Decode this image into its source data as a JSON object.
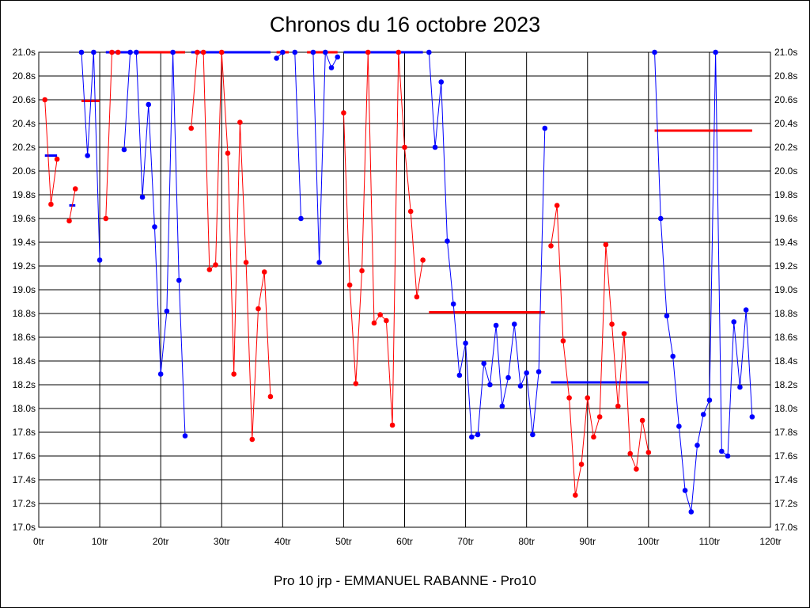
{
  "chart_data": {
    "type": "line",
    "title": "Chronos du 16 octobre 2023",
    "subtitle": "Pro 10 jrp - EMMANUEL RABANNE - Pro10",
    "xlim": [
      0,
      120
    ],
    "ylim": [
      17.0,
      21.0
    ],
    "x_ticks": [
      "0tr",
      "10tr",
      "20tr",
      "30tr",
      "40tr",
      "50tr",
      "60tr",
      "70tr",
      "80tr",
      "90tr",
      "100tr",
      "110tr",
      "120tr"
    ],
    "y_ticks": [
      "17.0s",
      "17.2s",
      "17.4s",
      "17.6s",
      "17.8s",
      "18.0s",
      "18.2s",
      "18.4s",
      "18.6s",
      "18.8s",
      "19.0s",
      "19.2s",
      "19.4s",
      "19.6s",
      "19.8s",
      "20.0s",
      "20.2s",
      "20.4s",
      "20.6s",
      "20.8s",
      "21.0s"
    ],
    "grid": true,
    "colors": {
      "red": "#ff0000",
      "blue": "#0000ff",
      "grid": "#000000"
    },
    "segments": [
      {
        "color": "red",
        "points": [
          [
            1,
            20.6
          ],
          [
            2,
            19.72
          ],
          [
            3,
            20.1
          ]
        ]
      },
      {
        "color": "red",
        "points": [
          [
            5,
            19.58
          ],
          [
            6,
            19.85
          ]
        ]
      },
      {
        "color": "blue",
        "points": [
          [
            7,
            21.0
          ],
          [
            8,
            20.13
          ],
          [
            9,
            21.0
          ],
          [
            10,
            19.25
          ]
        ]
      },
      {
        "color": "red",
        "points": [
          [
            11,
            19.6
          ],
          [
            12,
            21.0
          ],
          [
            13,
            21.0
          ]
        ]
      },
      {
        "color": "blue",
        "points": [
          [
            14,
            20.18
          ],
          [
            15,
            21.0
          ],
          [
            16,
            21.0
          ],
          [
            17,
            19.78
          ],
          [
            18,
            20.56
          ],
          [
            19,
            19.53
          ],
          [
            20,
            18.29
          ],
          [
            21,
            18.82
          ],
          [
            22,
            21.0
          ],
          [
            23,
            19.08
          ],
          [
            24,
            17.77
          ]
        ]
      },
      {
        "color": "red",
        "points": [
          [
            25,
            20.36
          ],
          [
            26,
            21.0
          ],
          [
            27,
            21.0
          ],
          [
            28,
            19.17
          ],
          [
            29,
            19.21
          ],
          [
            30,
            21.0
          ],
          [
            31,
            20.15
          ],
          [
            32,
            18.29
          ],
          [
            33,
            20.41
          ],
          [
            34,
            19.23
          ],
          [
            35,
            17.74
          ],
          [
            36,
            18.84
          ],
          [
            37,
            19.15
          ],
          [
            38,
            18.1
          ]
        ]
      },
      {
        "color": "blue",
        "points": [
          [
            39,
            20.95
          ],
          [
            40,
            21.0
          ]
        ]
      },
      {
        "color": "blue",
        "points": [
          [
            42,
            21.0
          ],
          [
            43,
            19.6
          ]
        ]
      },
      {
        "color": "blue",
        "points": [
          [
            45,
            21.0
          ],
          [
            46,
            19.23
          ],
          [
            47,
            21.0
          ],
          [
            48,
            20.87
          ],
          [
            49,
            20.96
          ]
        ]
      },
      {
        "color": "red",
        "points": [
          [
            50,
            20.49
          ],
          [
            51,
            19.04
          ],
          [
            52,
            18.21
          ],
          [
            53,
            19.16
          ],
          [
            54,
            21.0
          ],
          [
            55,
            18.72
          ],
          [
            56,
            18.79
          ],
          [
            57,
            18.74
          ],
          [
            58,
            17.86
          ],
          [
            59,
            21.0
          ],
          [
            60,
            20.2
          ],
          [
            61,
            19.66
          ],
          [
            62,
            18.94
          ],
          [
            63,
            19.25
          ]
        ]
      },
      {
        "color": "blue",
        "points": [
          [
            64,
            21.0
          ],
          [
            65,
            20.2
          ],
          [
            66,
            20.75
          ],
          [
            67,
            19.41
          ],
          [
            68,
            18.88
          ],
          [
            69,
            18.28
          ],
          [
            70,
            18.55
          ],
          [
            71,
            17.76
          ],
          [
            72,
            17.78
          ],
          [
            73,
            18.38
          ],
          [
            74,
            18.2
          ],
          [
            75,
            18.7
          ],
          [
            76,
            18.02
          ],
          [
            77,
            18.26
          ],
          [
            78,
            18.71
          ],
          [
            79,
            18.19
          ],
          [
            80,
            18.3
          ],
          [
            81,
            17.78
          ],
          [
            82,
            18.31
          ],
          [
            83,
            20.36
          ]
        ]
      },
      {
        "color": "red",
        "points": [
          [
            84,
            19.37
          ],
          [
            85,
            19.71
          ],
          [
            86,
            18.57
          ],
          [
            87,
            18.09
          ],
          [
            88,
            17.27
          ],
          [
            89,
            17.53
          ],
          [
            90,
            18.09
          ],
          [
            91,
            17.76
          ],
          [
            92,
            17.93
          ],
          [
            93,
            19.38
          ],
          [
            94,
            18.71
          ],
          [
            95,
            18.02
          ],
          [
            96,
            18.63
          ],
          [
            97,
            17.62
          ],
          [
            98,
            17.49
          ],
          [
            99,
            17.9
          ],
          [
            100,
            17.63
          ]
        ]
      },
      {
        "color": "blue",
        "points": [
          [
            101,
            21.0
          ],
          [
            102,
            19.6
          ],
          [
            103,
            18.78
          ],
          [
            104,
            18.44
          ],
          [
            105,
            17.85
          ],
          [
            106,
            17.31
          ],
          [
            107,
            17.13
          ],
          [
            108,
            17.69
          ],
          [
            109,
            17.95
          ],
          [
            110,
            18.07
          ],
          [
            111,
            21.0
          ],
          [
            112,
            17.64
          ],
          [
            113,
            17.6
          ],
          [
            114,
            18.73
          ],
          [
            115,
            18.18
          ],
          [
            116,
            18.83
          ],
          [
            117,
            17.93
          ]
        ]
      }
    ],
    "average_lines": [
      {
        "color": "blue",
        "x": [
          1,
          3
        ],
        "y": 20.13
      },
      {
        "color": "blue",
        "x": [
          5,
          6
        ],
        "y": 19.71
      },
      {
        "color": "red",
        "x": [
          7,
          10
        ],
        "y": 20.59
      },
      {
        "color": "blue",
        "x": [
          11,
          15
        ],
        "y": 21.0
      },
      {
        "color": "red",
        "x": [
          16,
          24
        ],
        "y": 21.0
      },
      {
        "color": "blue",
        "x": [
          25,
          38
        ],
        "y": 21.0
      },
      {
        "color": "red",
        "x": [
          39,
          41
        ],
        "y": 21.0
      },
      {
        "color": "red",
        "x": [
          44,
          49
        ],
        "y": 21.0
      },
      {
        "color": "blue",
        "x": [
          50,
          63
        ],
        "y": 21.0
      },
      {
        "color": "red",
        "x": [
          64,
          83
        ],
        "y": 18.81
      },
      {
        "color": "blue",
        "x": [
          84,
          100
        ],
        "y": 18.22
      },
      {
        "color": "red",
        "x": [
          101,
          117
        ],
        "y": 20.34
      }
    ]
  }
}
